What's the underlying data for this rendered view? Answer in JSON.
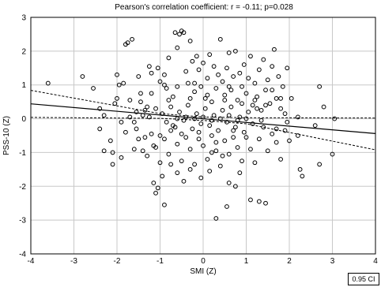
{
  "chart_data": {
    "type": "scatter",
    "title": "Pearson's correlation coefficient: r =  -0.11; p=0.028",
    "xlabel": "SMI (Z)",
    "ylabel": "PSS-10 (Z)",
    "xlim": [
      -4,
      4
    ],
    "ylim": [
      -4,
      3
    ],
    "xticks": [
      -4,
      -3,
      -2,
      -1,
      0,
      1,
      2,
      3,
      4
    ],
    "yticks": [
      -4,
      -3,
      -2,
      -1,
      0,
      1,
      2,
      3
    ],
    "grid": true,
    "ci_label": "0.95 CI",
    "regression": {
      "fit": [
        [
          -4,
          0.44
        ],
        [
          4,
          -0.44
        ]
      ],
      "ci_upper": [
        [
          -4,
          0.84
        ],
        [
          -1,
          0.15
        ],
        [
          0,
          0.05
        ],
        [
          1,
          0.03
        ],
        [
          4,
          0.02
        ]
      ],
      "ci_lower": [
        [
          -4,
          0.04
        ],
        [
          -1,
          0.01
        ],
        [
          0,
          -0.05
        ],
        [
          1,
          -0.15
        ],
        [
          4,
          -0.92
        ]
      ]
    },
    "points": [
      [
        -3.6,
        1.05
      ],
      [
        -2.8,
        1.25
      ],
      [
        -2.55,
        0.9
      ],
      [
        -2.4,
        0.3
      ],
      [
        -2.3,
        -0.95
      ],
      [
        -2.15,
        -0.65
      ],
      [
        -2.1,
        -1.0
      ],
      [
        -2.05,
        0.45
      ],
      [
        -2.0,
        1.3
      ],
      [
        -1.95,
        1.0
      ],
      [
        -1.9,
        -0.1
      ],
      [
        -1.85,
        1.05
      ],
      [
        -1.8,
        2.2
      ],
      [
        -1.75,
        2.25
      ],
      [
        -1.7,
        0.55
      ],
      [
        -1.65,
        2.35
      ],
      [
        -1.6,
        -0.9
      ],
      [
        -1.55,
        -0.3
      ],
      [
        -1.5,
        1.25
      ],
      [
        -1.45,
        0.75
      ],
      [
        -1.4,
        0.1
      ],
      [
        -1.35,
        -0.55
      ],
      [
        -1.3,
        0.35
      ],
      [
        -1.25,
        1.55
      ],
      [
        -1.2,
        1.35
      ],
      [
        -1.15,
        -0.8
      ],
      [
        -1.1,
        0.3
      ],
      [
        -1.05,
        1.5
      ],
      [
        -1.0,
        1.1
      ],
      [
        -0.95,
        -1.7
      ],
      [
        -0.9,
        1.3
      ],
      [
        -0.85,
        0.9
      ],
      [
        -0.8,
        1.8
      ],
      [
        -0.75,
        -0.35
      ],
      [
        -0.7,
        0.65
      ],
      [
        -0.65,
        2.55
      ],
      [
        -0.6,
        2.1
      ],
      [
        -0.55,
        2.5
      ],
      [
        -0.5,
        2.6
      ],
      [
        -0.45,
        2.55
      ],
      [
        -0.4,
        1.4
      ],
      [
        -0.35,
        1.05
      ],
      [
        -0.3,
        2.3
      ],
      [
        -0.25,
        1.7
      ],
      [
        -0.2,
        0.8
      ],
      [
        -0.15,
        1.85
      ],
      [
        -0.1,
        1.45
      ],
      [
        -0.05,
        0.95
      ],
      [
        0.0,
        1.65
      ],
      [
        0.05,
        0.6
      ],
      [
        0.1,
        1.2
      ],
      [
        0.15,
        1.9
      ],
      [
        0.2,
        0.5
      ],
      [
        0.25,
        1.55
      ],
      [
        0.3,
        0.9
      ],
      [
        0.35,
        1.3
      ],
      [
        0.4,
        2.35
      ],
      [
        0.45,
        1.1
      ],
      [
        0.5,
        0.7
      ],
      [
        0.55,
        1.5
      ],
      [
        0.6,
        1.95
      ],
      [
        0.65,
        0.85
      ],
      [
        0.7,
        1.25
      ],
      [
        0.75,
        2.0
      ],
      [
        0.8,
        0.55
      ],
      [
        0.85,
        1.35
      ],
      [
        0.9,
        0.95
      ],
      [
        0.95,
        1.6
      ],
      [
        1.0,
        0.75
      ],
      [
        1.05,
        1.2
      ],
      [
        1.1,
        1.85
      ],
      [
        1.15,
        0.4
      ],
      [
        1.2,
        1.05
      ],
      [
        1.25,
        0.65
      ],
      [
        1.3,
        1.45
      ],
      [
        1.35,
        0.25
      ],
      [
        1.4,
        1.75
      ],
      [
        1.45,
        0.85
      ],
      [
        1.5,
        1.15
      ],
      [
        1.55,
        0.45
      ],
      [
        1.6,
        1.55
      ],
      [
        1.65,
        2.05
      ],
      [
        1.7,
        0.6
      ],
      [
        1.75,
        1.25
      ],
      [
        1.8,
        0.3
      ],
      [
        1.85,
        0.95
      ],
      [
        1.9,
        0.15
      ],
      [
        1.95,
        1.5
      ],
      [
        2.05,
        0.6
      ],
      [
        2.2,
        0.05
      ],
      [
        2.7,
        0.95
      ],
      [
        2.8,
        0.35
      ],
      [
        3.05,
        0.0
      ],
      [
        -1.5,
        -0.6
      ],
      [
        -1.4,
        -0.95
      ],
      [
        -1.3,
        -1.1
      ],
      [
        -1.2,
        -0.45
      ],
      [
        -1.1,
        -0.85
      ],
      [
        -1.0,
        -1.3
      ],
      [
        -0.9,
        -0.6
      ],
      [
        -0.8,
        -1.05
      ],
      [
        -0.7,
        -0.2
      ],
      [
        -0.6,
        -0.75
      ],
      [
        -0.5,
        -1.25
      ],
      [
        -0.4,
        -0.55
      ],
      [
        -0.3,
        -0.9
      ],
      [
        -0.2,
        -1.35
      ],
      [
        -0.1,
        -0.4
      ],
      [
        0.0,
        -0.8
      ],
      [
        0.1,
        -1.2
      ],
      [
        0.2,
        -0.5
      ],
      [
        0.3,
        -0.95
      ],
      [
        0.4,
        -1.4
      ],
      [
        0.5,
        -0.65
      ],
      [
        0.6,
        -1.05
      ],
      [
        0.7,
        -0.35
      ],
      [
        0.8,
        -0.85
      ],
      [
        0.9,
        -1.25
      ],
      [
        1.0,
        -0.55
      ],
      [
        1.1,
        -0.9
      ],
      [
        1.2,
        -1.3
      ],
      [
        1.3,
        -0.6
      ],
      [
        1.4,
        -0.25
      ],
      [
        1.5,
        -0.95
      ],
      [
        1.6,
        -0.45
      ],
      [
        1.7,
        -0.7
      ],
      [
        1.8,
        -1.2
      ],
      [
        1.9,
        -0.35
      ],
      [
        2.0,
        -0.65
      ],
      [
        2.2,
        -0.5
      ],
      [
        2.25,
        -1.5
      ],
      [
        2.3,
        -1.7
      ],
      [
        2.7,
        -1.35
      ],
      [
        3.0,
        -1.05
      ],
      [
        -2.4,
        -0.3
      ],
      [
        -2.1,
        -1.35
      ],
      [
        -1.9,
        -1.15
      ],
      [
        -1.15,
        -1.9
      ],
      [
        -1.05,
        -2.05
      ],
      [
        -1.1,
        -2.2
      ],
      [
        -0.9,
        -2.55
      ],
      [
        -0.6,
        -1.6
      ],
      [
        -0.3,
        -1.5
      ],
      [
        -0.05,
        -1.75
      ],
      [
        0.15,
        -1.55
      ],
      [
        0.3,
        -2.95
      ],
      [
        0.55,
        -2.6
      ],
      [
        0.6,
        -1.9
      ],
      [
        0.75,
        -2.0
      ],
      [
        1.1,
        -2.4
      ],
      [
        1.3,
        -2.45
      ],
      [
        1.45,
        -2.5
      ],
      [
        0.85,
        -1.6
      ],
      [
        -0.45,
        -1.85
      ],
      [
        -0.75,
        -1.35
      ],
      [
        0.45,
        -1.1
      ],
      [
        -0.95,
        0.15
      ],
      [
        -0.85,
        -0.1
      ],
      [
        -0.75,
        0.35
      ],
      [
        -0.65,
        -0.25
      ],
      [
        -0.55,
        0.2
      ],
      [
        -0.45,
        -0.05
      ],
      [
        -0.35,
        0.4
      ],
      [
        -0.25,
        -0.3
      ],
      [
        -0.15,
        0.15
      ],
      [
        -0.05,
        -0.15
      ],
      [
        0.05,
        0.3
      ],
      [
        0.15,
        -0.2
      ],
      [
        0.25,
        0.1
      ],
      [
        0.35,
        -0.35
      ],
      [
        0.45,
        0.25
      ],
      [
        0.55,
        -0.1
      ],
      [
        0.65,
        0.35
      ],
      [
        0.75,
        -0.25
      ],
      [
        0.85,
        0.05
      ],
      [
        0.95,
        -0.4
      ],
      [
        1.05,
        0.2
      ],
      [
        1.15,
        -0.15
      ],
      [
        1.25,
        0.3
      ],
      [
        1.35,
        -0.05
      ],
      [
        1.45,
        0.4
      ],
      [
        -1.25,
        0.05
      ],
      [
        -1.35,
        0.25
      ],
      [
        -1.55,
        0.2
      ],
      [
        -1.7,
        0.05
      ],
      [
        -2.3,
        0.1
      ],
      [
        -0.6,
        0.0
      ],
      [
        -0.4,
        0.05
      ],
      [
        -0.2,
        0.0
      ],
      [
        0.0,
        0.05
      ],
      [
        0.2,
        -0.05
      ],
      [
        0.4,
        0.0
      ],
      [
        0.6,
        0.1
      ],
      [
        0.8,
        -0.05
      ],
      [
        1.0,
        0.0
      ],
      [
        -0.5,
        -0.45
      ],
      [
        -0.3,
        0.6
      ],
      [
        -0.1,
        -0.6
      ],
      [
        0.1,
        0.7
      ],
      [
        0.3,
        -0.7
      ],
      [
        0.5,
        0.55
      ],
      [
        0.7,
        -0.55
      ],
      [
        0.9,
        0.45
      ],
      [
        -0.8,
        0.55
      ],
      [
        -1.0,
        -0.5
      ],
      [
        1.2,
        0.55
      ],
      [
        -0.2,
        1.05
      ],
      [
        0.2,
        -1.0
      ],
      [
        0.6,
        0.95
      ],
      [
        -0.6,
        0.95
      ],
      [
        1.6,
        0.85
      ],
      [
        1.7,
        -0.3
      ],
      [
        1.8,
        0.6
      ],
      [
        1.95,
        -0.1
      ],
      [
        2.6,
        -0.2
      ],
      [
        -1.8,
        -0.4
      ],
      [
        -2.0,
        0.6
      ],
      [
        -1.6,
        -0.1
      ],
      [
        -1.45,
        0.5
      ],
      [
        -1.2,
        0.75
      ],
      [
        -0.9,
        1.0
      ]
    ]
  }
}
